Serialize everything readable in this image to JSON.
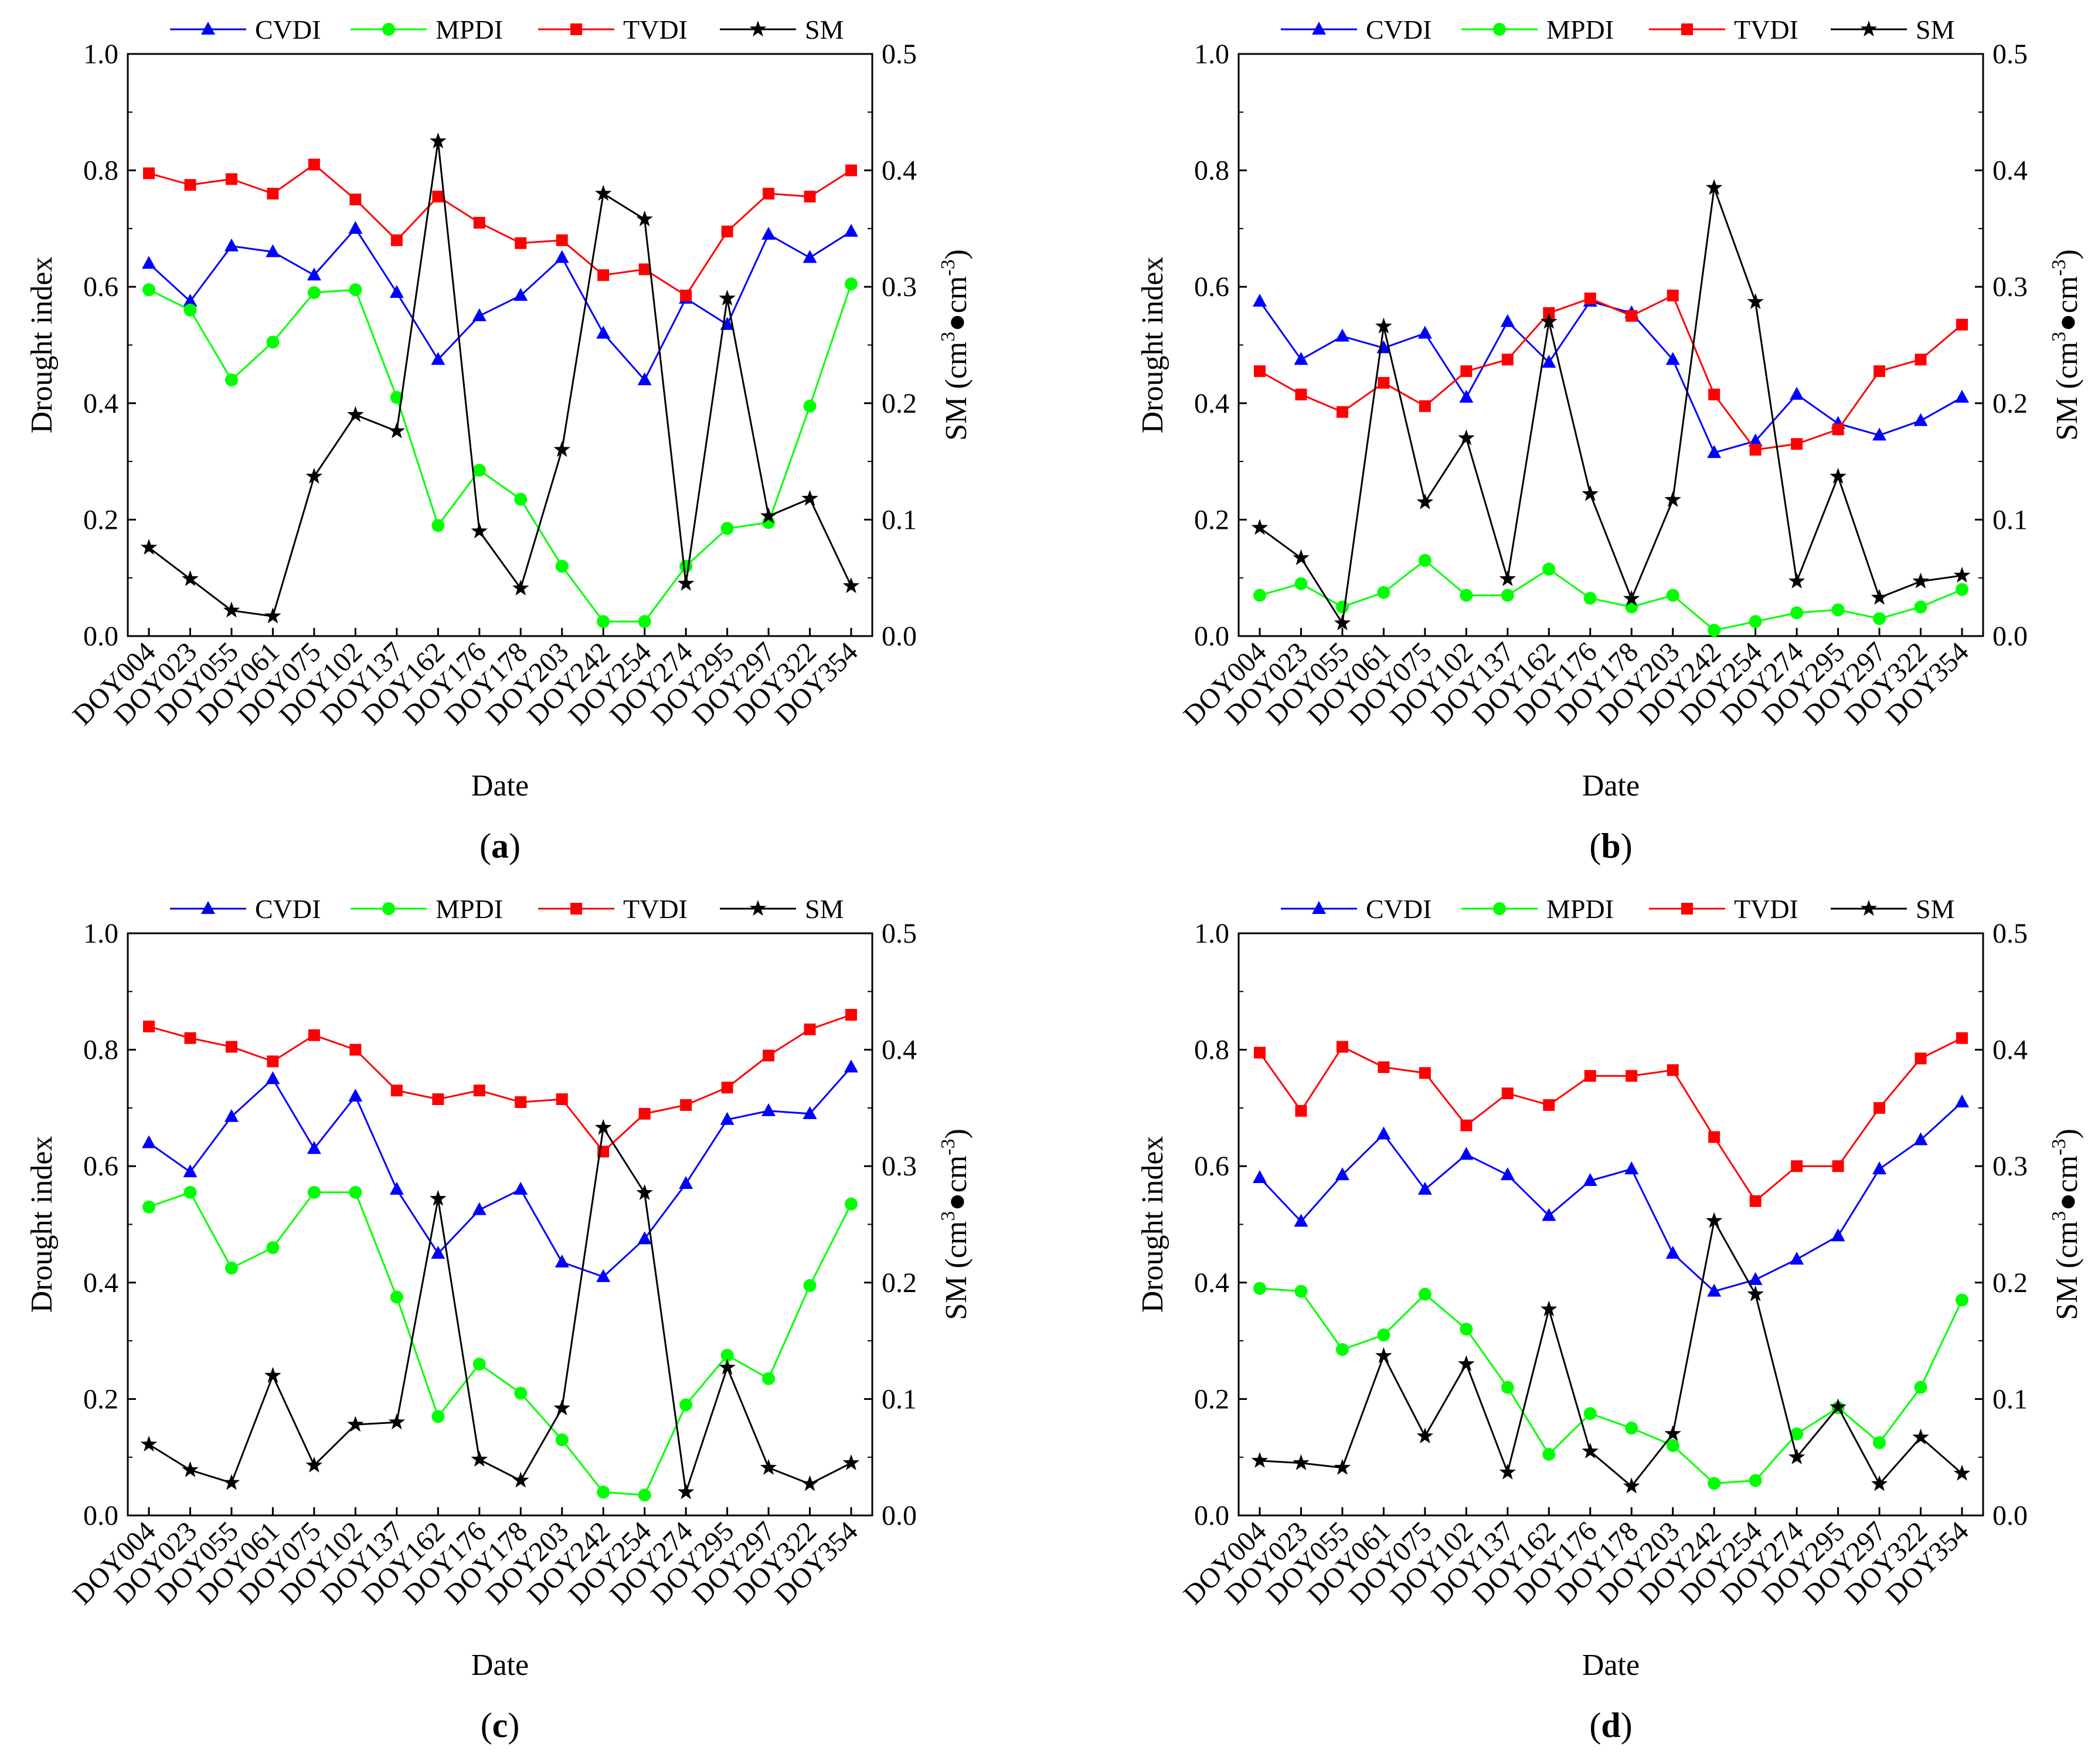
{
  "figure_title": "",
  "legend": {
    "series_names": [
      "CVDI",
      "MPDI",
      "TVDI",
      "SM"
    ]
  },
  "colors": {
    "CVDI": "#0000ff",
    "MPDI": "#00ff00",
    "TVDI": "#ff0000",
    "SM": "#000000"
  },
  "markers": {
    "CVDI": "triangle",
    "MPDI": "circle",
    "TVDI": "square",
    "SM": "star"
  },
  "chart_data": [
    {
      "type": "line",
      "panel_label": "a",
      "xlabel": "Date",
      "ylabel": "Drought index",
      "y2label_prefix": "SM (cm",
      "y2label_sup1": "3",
      "y2label_mid": "●cm",
      "y2label_sup2": "-3",
      "y2label_suffix": ")",
      "ylim": [
        0,
        1.0
      ],
      "y2lim": [
        0,
        0.5
      ],
      "yticks": [
        "0.0",
        "0.2",
        "0.4",
        "0.6",
        "0.8",
        "1.0"
      ],
      "y2ticks": [
        "0.0",
        "0.1",
        "0.2",
        "0.3",
        "0.4",
        "0.5"
      ],
      "categories": [
        "DOY004",
        "DOY023",
        "DOY055",
        "DOY061",
        "DOY075",
        "DOY102",
        "DOY137",
        "DOY162",
        "DOY176",
        "DOY178",
        "DOY203",
        "DOY242",
        "DOY254",
        "DOY274",
        "DOY295",
        "DOY297",
        "DOY322",
        "DOY354"
      ],
      "series": [
        {
          "name": "CVDI",
          "axis": "left",
          "values": [
            0.64,
            0.575,
            0.67,
            0.66,
            0.62,
            0.7,
            0.59,
            0.475,
            0.55,
            0.585,
            0.65,
            0.52,
            0.44,
            0.58,
            0.535,
            0.69,
            0.65,
            0.695
          ]
        },
        {
          "name": "MPDI",
          "axis": "left",
          "values": [
            0.595,
            0.56,
            0.44,
            0.505,
            0.59,
            0.595,
            0.41,
            0.19,
            0.285,
            0.235,
            0.12,
            0.025,
            0.025,
            0.12,
            0.185,
            0.195,
            0.395,
            0.605
          ]
        },
        {
          "name": "TVDI",
          "axis": "left",
          "values": [
            0.795,
            0.775,
            0.785,
            0.76,
            0.81,
            0.75,
            0.68,
            0.755,
            0.71,
            0.675,
            0.68,
            0.62,
            0.63,
            0.585,
            0.695,
            0.76,
            0.755,
            0.8
          ]
        },
        {
          "name": "SM",
          "axis": "right",
          "values": [
            0.076,
            0.049,
            0.022,
            0.017,
            0.137,
            0.19,
            0.176,
            0.425,
            0.09,
            0.041,
            0.16,
            0.38,
            0.358,
            0.045,
            0.29,
            0.103,
            0.118,
            0.043
          ]
        }
      ]
    },
    {
      "type": "line",
      "panel_label": "b",
      "xlabel": "Date",
      "ylabel": "Drought index",
      "y2label_prefix": "SM (cm",
      "y2label_sup1": "3",
      "y2label_mid": "●cm",
      "y2label_sup2": "-3",
      "y2label_suffix": ")",
      "ylim": [
        0,
        1.0
      ],
      "y2lim": [
        0,
        0.5
      ],
      "yticks": [
        "0.0",
        "0.2",
        "0.4",
        "0.6",
        "0.8",
        "1.0"
      ],
      "y2ticks": [
        "0.0",
        "0.1",
        "0.2",
        "0.3",
        "0.4",
        "0.5"
      ],
      "categories": [
        "DOY004",
        "DOY023",
        "DOY055",
        "DOY061",
        "DOY075",
        "DOY102",
        "DOY137",
        "DOY162",
        "DOY176",
        "DOY178",
        "DOY203",
        "DOY242",
        "DOY254",
        "DOY274",
        "DOY295",
        "DOY297",
        "DOY322",
        "DOY354"
      ],
      "series": [
        {
          "name": "CVDI",
          "axis": "left",
          "values": [
            0.575,
            0.475,
            0.515,
            0.495,
            0.52,
            0.41,
            0.54,
            0.47,
            0.575,
            0.555,
            0.475,
            0.315,
            0.335,
            0.415,
            0.365,
            0.345,
            0.37,
            0.41
          ]
        },
        {
          "name": "MPDI",
          "axis": "left",
          "values": [
            0.07,
            0.09,
            0.05,
            0.075,
            0.13,
            0.07,
            0.07,
            0.115,
            0.065,
            0.05,
            0.07,
            0.01,
            0.025,
            0.04,
            0.045,
            0.03,
            0.05,
            0.08
          ]
        },
        {
          "name": "TVDI",
          "axis": "left",
          "values": [
            0.455,
            0.415,
            0.385,
            0.435,
            0.395,
            0.455,
            0.475,
            0.555,
            0.58,
            0.55,
            0.585,
            0.415,
            0.32,
            0.33,
            0.355,
            0.455,
            0.475,
            0.535
          ]
        },
        {
          "name": "SM",
          "axis": "right",
          "values": [
            0.093,
            0.067,
            0.011,
            0.266,
            0.115,
            0.17,
            0.049,
            0.27,
            0.122,
            0.032,
            0.117,
            0.385,
            0.287,
            0.047,
            0.137,
            0.033,
            0.047,
            0.052
          ]
        }
      ]
    },
    {
      "type": "line",
      "panel_label": "c",
      "xlabel": "Date",
      "ylabel": "Drought index",
      "y2label_prefix": "SM (cm",
      "y2label_sup1": "3",
      "y2label_mid": "●cm",
      "y2label_sup2": "-3",
      "y2label_suffix": ")",
      "ylim": [
        0,
        1.0
      ],
      "y2lim": [
        0,
        0.5
      ],
      "yticks": [
        "0.0",
        "0.2",
        "0.4",
        "0.6",
        "0.8",
        "1.0"
      ],
      "y2ticks": [
        "0.0",
        "0.1",
        "0.2",
        "0.3",
        "0.4",
        "0.5"
      ],
      "categories": [
        "DOY004",
        "DOY023",
        "DOY055",
        "DOY061",
        "DOY075",
        "DOY102",
        "DOY137",
        "DOY162",
        "DOY176",
        "DOY178",
        "DOY203",
        "DOY242",
        "DOY254",
        "DOY274",
        "DOY295",
        "DOY297",
        "DOY322",
        "DOY354"
      ],
      "series": [
        {
          "name": "CVDI",
          "axis": "left",
          "values": [
            0.64,
            0.59,
            0.685,
            0.75,
            0.63,
            0.72,
            0.56,
            0.45,
            0.525,
            0.56,
            0.435,
            0.41,
            0.475,
            0.57,
            0.68,
            0.695,
            0.69,
            0.77
          ]
        },
        {
          "name": "MPDI",
          "axis": "left",
          "values": [
            0.53,
            0.555,
            0.425,
            0.46,
            0.555,
            0.555,
            0.375,
            0.17,
            0.26,
            0.21,
            0.13,
            0.04,
            0.035,
            0.19,
            0.275,
            0.235,
            0.395,
            0.535
          ]
        },
        {
          "name": "TVDI",
          "axis": "left",
          "values": [
            0.84,
            0.82,
            0.805,
            0.78,
            0.825,
            0.8,
            0.73,
            0.715,
            0.73,
            0.71,
            0.715,
            0.625,
            0.69,
            0.705,
            0.735,
            0.79,
            0.835,
            0.86
          ]
        },
        {
          "name": "SM",
          "axis": "right",
          "values": [
            0.061,
            0.039,
            0.028,
            0.12,
            0.043,
            0.078,
            0.08,
            0.272,
            0.048,
            0.03,
            0.092,
            0.333,
            0.277,
            0.02,
            0.127,
            0.041,
            0.027,
            0.045
          ]
        }
      ]
    },
    {
      "type": "line",
      "panel_label": "d",
      "xlabel": "Date",
      "ylabel": "Drought index",
      "y2label_prefix": "SM (cm",
      "y2label_sup1": "3",
      "y2label_mid": "●cm",
      "y2label_sup2": "-3",
      "y2label_suffix": ")",
      "ylim": [
        0,
        1.0
      ],
      "y2lim": [
        0,
        0.5
      ],
      "yticks": [
        "0.0",
        "0.2",
        "0.4",
        "0.6",
        "0.8",
        "1.0"
      ],
      "y2ticks": [
        "0.0",
        "0.1",
        "0.2",
        "0.3",
        "0.4",
        "0.5"
      ],
      "categories": [
        "DOY004",
        "DOY023",
        "DOY055",
        "DOY061",
        "DOY075",
        "DOY102",
        "DOY137",
        "DOY162",
        "DOY176",
        "DOY178",
        "DOY203",
        "DOY242",
        "DOY254",
        "DOY274",
        "DOY295",
        "DOY297",
        "DOY322",
        "DOY354"
      ],
      "series": [
        {
          "name": "CVDI",
          "axis": "left",
          "values": [
            0.58,
            0.505,
            0.585,
            0.655,
            0.56,
            0.62,
            0.585,
            0.515,
            0.575,
            0.595,
            0.45,
            0.385,
            0.405,
            0.44,
            0.48,
            0.595,
            0.645,
            0.71
          ]
        },
        {
          "name": "MPDI",
          "axis": "left",
          "values": [
            0.39,
            0.385,
            0.285,
            0.31,
            0.38,
            0.32,
            0.22,
            0.105,
            0.175,
            0.15,
            0.12,
            0.055,
            0.06,
            0.14,
            0.185,
            0.125,
            0.22,
            0.37
          ]
        },
        {
          "name": "TVDI",
          "axis": "left",
          "values": [
            0.795,
            0.695,
            0.805,
            0.77,
            0.76,
            0.67,
            0.725,
            0.705,
            0.755,
            0.755,
            0.765,
            0.65,
            0.54,
            0.6,
            0.6,
            0.7,
            0.785,
            0.82
          ]
        },
        {
          "name": "SM",
          "axis": "right",
          "values": [
            0.047,
            0.045,
            0.041,
            0.137,
            0.068,
            0.13,
            0.037,
            0.177,
            0.055,
            0.025,
            0.07,
            0.253,
            0.19,
            0.05,
            0.093,
            0.027,
            0.067,
            0.036
          ]
        }
      ]
    }
  ]
}
